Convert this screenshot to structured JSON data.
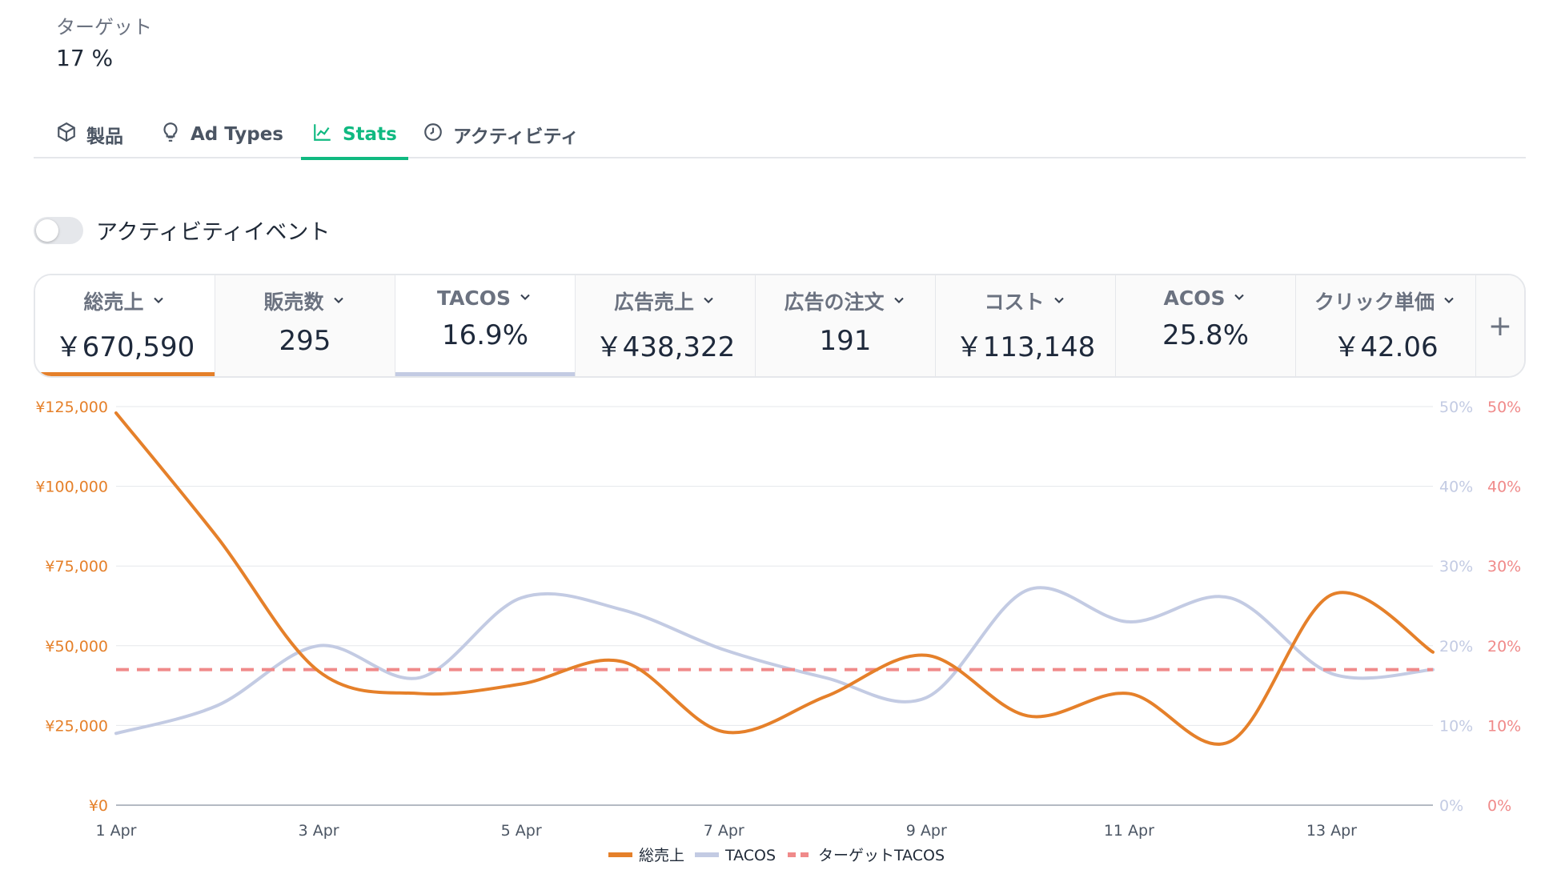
{
  "target": {
    "label": "ターゲット",
    "value": "17 %"
  },
  "tabs": [
    {
      "label": "製品",
      "icon": "box-icon"
    },
    {
      "label": "Ad Types",
      "icon": "lightbulb-icon"
    },
    {
      "label": "Stats",
      "icon": "chart-line-icon",
      "active": true
    },
    {
      "label": "アクティビティ",
      "icon": "clock-icon"
    }
  ],
  "toggle": {
    "label": "アクティビティイベント",
    "on": false
  },
  "metrics": [
    {
      "label": "総売上",
      "value": "￥670,590",
      "selected": "orange"
    },
    {
      "label": "販売数",
      "value": "295"
    },
    {
      "label": "TACOS",
      "value": "16.9%",
      "selected": "blue"
    },
    {
      "label": "広告売上",
      "value": "￥438,322"
    },
    {
      "label": "広告の注文",
      "value": "191"
    },
    {
      "label": "コスト",
      "value": "￥113,148"
    },
    {
      "label": "ACOS",
      "value": "25.8%"
    },
    {
      "label": "クリック単価",
      "value": "￥42.06"
    }
  ],
  "add_metric_label": "+",
  "colors": {
    "accent": "#10b981",
    "sales": "#e5802a",
    "tacos": "#c3cbe3",
    "target": "#f08a8a"
  },
  "chart_data": {
    "type": "line",
    "x": [
      "1 Apr",
      "2 Apr",
      "3 Apr",
      "4 Apr",
      "5 Apr",
      "6 Apr",
      "7 Apr",
      "8 Apr",
      "9 Apr",
      "10 Apr",
      "11 Apr",
      "12 Apr",
      "13 Apr",
      "14 Apr"
    ],
    "x_tick_labels": [
      "1 Apr",
      "3 Apr",
      "5 Apr",
      "7 Apr",
      "9 Apr",
      "11 Apr",
      "13 Apr"
    ],
    "y_left": {
      "ticks": [
        "¥0",
        "¥25,000",
        "¥50,000",
        "¥75,000",
        "¥100,000",
        "¥125,000"
      ],
      "range": [
        0,
        125000
      ]
    },
    "y_right": {
      "ticks": [
        "0%",
        "10%",
        "20%",
        "30%",
        "40%",
        "50%"
      ],
      "range": [
        0,
        50
      ]
    },
    "series": [
      {
        "name": "総売上",
        "axis": "left",
        "values": [
          123000,
          84000,
          42000,
          35000,
          38000,
          45000,
          23000,
          34000,
          47000,
          28000,
          35000,
          20000,
          66000,
          48000
        ]
      },
      {
        "name": "TACOS",
        "axis": "right",
        "values": [
          9.0,
          12.5,
          20.0,
          16.0,
          26.0,
          24.5,
          19.5,
          16.0,
          13.5,
          27.0,
          23.0,
          26.0,
          16.5,
          17.0
        ]
      },
      {
        "name": "ターゲットTACOS",
        "axis": "right",
        "values": [
          17,
          17,
          17,
          17,
          17,
          17,
          17,
          17,
          17,
          17,
          17,
          17,
          17,
          17
        ],
        "style": "dashed"
      }
    ],
    "grid": true,
    "legend": "bottom-center"
  }
}
